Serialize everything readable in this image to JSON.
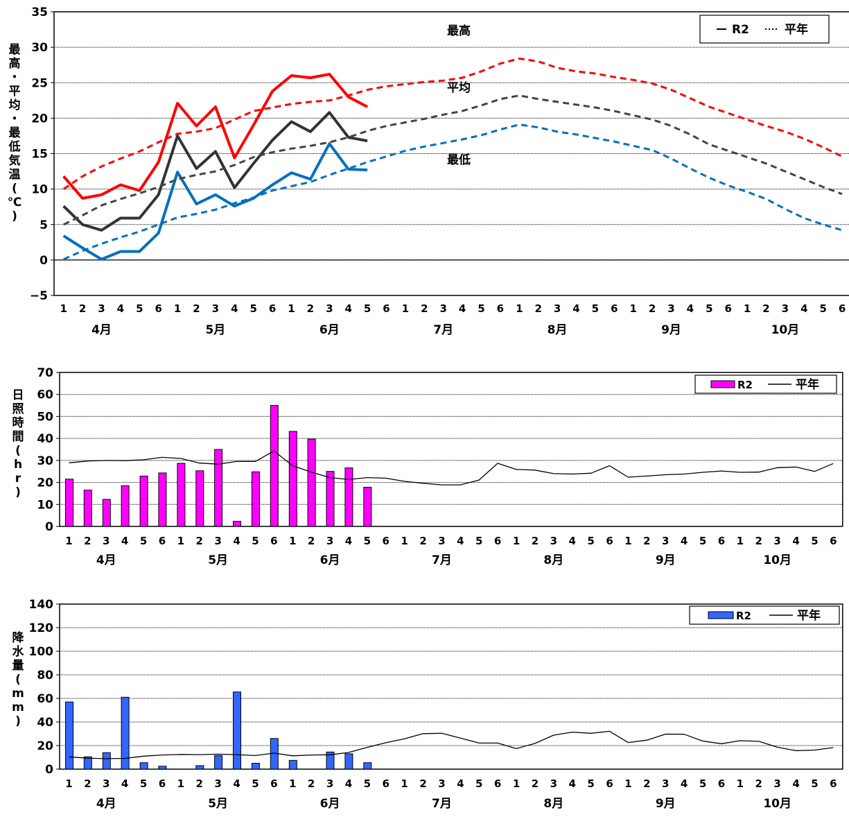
{
  "chart_data": [
    {
      "type": "line",
      "ylabel": "最高・平均・最低気温(℃)",
      "ylim": [
        -5,
        35
      ],
      "yticks": [
        35,
        30,
        25,
        20,
        15,
        10,
        5,
        0,
        -5
      ],
      "ytick_labels": [
        "35",
        "30",
        "25",
        "20",
        "15",
        "10",
        "5",
        "0",
        "−5"
      ],
      "xtick_labels": [
        "1",
        "2",
        "3",
        "4",
        "5",
        "6",
        "1",
        "2",
        "3",
        "4",
        "5",
        "6",
        "1",
        "2",
        "3",
        "4",
        "5",
        "6",
        "1",
        "2",
        "3",
        "4",
        "5",
        "6",
        "1",
        "2",
        "3",
        "4",
        "5",
        "6",
        "1",
        "2",
        "3",
        "4",
        "5",
        "6",
        "1",
        "2",
        "3",
        "4",
        "5",
        "6"
      ],
      "months": [
        "4月",
        "5月",
        "6月",
        "7月",
        "8月",
        "9月",
        "10月"
      ],
      "grid": true,
      "legend": {
        "position": "top-right",
        "items": [
          "R2",
          "平年"
        ]
      },
      "annotations": [
        "最高",
        "平均",
        "最低"
      ],
      "series": [
        {
          "name": "最高",
          "kind": "R2",
          "color": "#ff0000",
          "values": [
            11.8,
            8.7,
            9.2,
            10.6,
            9.8,
            13.8,
            22.1,
            18.9,
            21.6,
            14.4,
            19.0,
            23.8,
            26.0,
            25.7,
            26.2,
            23.0,
            21.6
          ]
        },
        {
          "name": "平均",
          "kind": "R2",
          "color": "#333333",
          "values": [
            7.6,
            5.0,
            4.2,
            5.9,
            5.9,
            9.2,
            17.5,
            12.9,
            15.3,
            10.2,
            13.6,
            16.9,
            19.5,
            18.1,
            20.8,
            17.3,
            16.8
          ]
        },
        {
          "name": "最低",
          "kind": "R2",
          "color": "#0070c0",
          "values": [
            3.4,
            1.7,
            0.1,
            1.2,
            1.2,
            3.8,
            12.4,
            7.9,
            9.2,
            7.6,
            8.7,
            10.6,
            12.3,
            11.4,
            16.4,
            12.8,
            12.7
          ]
        },
        {
          "name": "最高",
          "kind": "平年",
          "color": "#ff0000",
          "values": [
            10.0,
            11.8,
            13.2,
            14.3,
            15.3,
            16.6,
            17.8,
            18.1,
            18.6,
            19.8,
            21.0,
            21.5,
            22.0,
            22.3,
            22.5,
            23.2,
            24.0,
            24.5,
            24.8,
            25.1,
            25.3,
            25.7,
            26.6,
            27.7,
            28.4,
            28.0,
            27.1,
            26.6,
            26.3,
            25.8,
            25.4,
            24.9,
            24.0,
            22.8,
            21.6,
            20.7,
            19.8,
            18.9,
            18.1,
            17.1,
            15.9,
            14.6
          ]
        },
        {
          "name": "平均",
          "kind": "平年",
          "color": "#444444",
          "values": [
            5.0,
            6.3,
            7.7,
            8.6,
            9.4,
            10.3,
            11.4,
            12.0,
            12.5,
            13.4,
            14.5,
            15.2,
            15.7,
            16.1,
            16.6,
            17.3,
            18.2,
            18.9,
            19.4,
            19.9,
            20.5,
            21.0,
            21.8,
            22.7,
            23.2,
            22.7,
            22.3,
            21.9,
            21.5,
            21.0,
            20.4,
            19.8,
            18.9,
            17.7,
            16.3,
            15.4,
            14.5,
            13.6,
            12.5,
            11.4,
            10.3,
            9.3
          ]
        },
        {
          "name": "最低",
          "kind": "平年",
          "color": "#0070c0",
          "values": [
            0.1,
            1.3,
            2.3,
            3.2,
            4.0,
            5.0,
            6.0,
            6.5,
            7.1,
            8.0,
            8.8,
            9.8,
            10.4,
            11.0,
            12.0,
            12.9,
            13.8,
            14.6,
            15.4,
            16.0,
            16.5,
            17.0,
            17.6,
            18.4,
            19.1,
            18.7,
            18.1,
            17.7,
            17.2,
            16.7,
            16.1,
            15.5,
            14.3,
            12.9,
            11.6,
            10.5,
            9.6,
            8.6,
            7.2,
            5.9,
            5.0,
            4.2
          ]
        }
      ]
    },
    {
      "type": "bar",
      "ylabel": "日照時間(hr)",
      "ylim": [
        0,
        70
      ],
      "yticks": [
        0,
        10,
        20,
        30,
        40,
        50,
        60,
        70
      ],
      "xtick_labels": [
        "1",
        "2",
        "3",
        "4",
        "5",
        "6",
        "1",
        "2",
        "3",
        "4",
        "5",
        "6",
        "1",
        "2",
        "3",
        "4",
        "5",
        "6",
        "1",
        "2",
        "3",
        "4",
        "5",
        "6",
        "1",
        "2",
        "3",
        "4",
        "5",
        "6",
        "1",
        "2",
        "3",
        "4",
        "5",
        "6",
        "1",
        "2",
        "3",
        "4",
        "5",
        "6"
      ],
      "months": [
        "4月",
        "5月",
        "6月",
        "7月",
        "8月",
        "9月",
        "10月"
      ],
      "grid": true,
      "legend": {
        "position": "top-right",
        "items": [
          "R2",
          "平年"
        ]
      },
      "series": [
        {
          "name": "R2",
          "kind": "bar",
          "color": "#ff00ff",
          "values": [
            21.5,
            16.5,
            12.3,
            18.5,
            22.9,
            24.3,
            28.7,
            25.3,
            35.0,
            2.3,
            24.8,
            55.0,
            43.2,
            39.7,
            25.0,
            26.6,
            17.8
          ]
        },
        {
          "name": "平年",
          "kind": "line",
          "color": "#000000",
          "values": [
            28.9,
            29.7,
            30.0,
            29.9,
            30.3,
            31.4,
            30.9,
            28.8,
            28.3,
            29.5,
            29.5,
            34.3,
            27.6,
            24.7,
            22.2,
            21.3,
            22.2,
            21.9,
            20.5,
            19.6,
            18.9,
            18.9,
            21.1,
            28.7,
            25.9,
            25.6,
            24.0,
            23.8,
            24.2,
            27.6,
            22.4,
            22.9,
            23.5,
            23.8,
            24.6,
            25.2,
            24.6,
            24.7,
            26.7,
            27.0,
            25.0,
            28.6
          ]
        }
      ]
    },
    {
      "type": "bar",
      "ylabel": "降水量(mm)",
      "ylim": [
        0,
        140
      ],
      "yticks": [
        0,
        20,
        40,
        60,
        80,
        100,
        120,
        140
      ],
      "xtick_labels": [
        "1",
        "2",
        "3",
        "4",
        "5",
        "6",
        "1",
        "2",
        "3",
        "4",
        "5",
        "6",
        "1",
        "2",
        "3",
        "4",
        "5",
        "6",
        "1",
        "2",
        "3",
        "4",
        "5",
        "6",
        "1",
        "2",
        "3",
        "4",
        "5",
        "6",
        "1",
        "2",
        "3",
        "4",
        "5",
        "6",
        "1",
        "2",
        "3",
        "4",
        "5",
        "6"
      ],
      "months": [
        "4月",
        "5月",
        "6月",
        "7月",
        "8月",
        "9月",
        "10月"
      ],
      "grid": true,
      "legend": {
        "position": "top-right",
        "items": [
          "R2",
          "平年"
        ]
      },
      "series": [
        {
          "name": "R2",
          "kind": "bar",
          "color": "#3366ff",
          "values": [
            57.0,
            10.5,
            14.0,
            61.0,
            5.5,
            2.5,
            0,
            3.0,
            11.5,
            65.5,
            5.0,
            26.0,
            7.5,
            0,
            14.5,
            13.0,
            5.5
          ]
        },
        {
          "name": "平年",
          "kind": "line",
          "color": "#000000",
          "values": [
            10.4,
            9.3,
            8.9,
            9.1,
            11.0,
            12.0,
            12.5,
            12.3,
            12.7,
            12.3,
            11.5,
            13.6,
            11.3,
            12.0,
            12.2,
            14.1,
            18.5,
            22.4,
            25.7,
            30.1,
            30.4,
            26.3,
            22.1,
            22.1,
            17.4,
            21.8,
            28.8,
            31.4,
            30.4,
            32.1,
            22.6,
            24.6,
            29.7,
            29.6,
            23.8,
            21.6,
            24.1,
            23.6,
            18.6,
            15.7,
            16.2,
            18.3
          ]
        }
      ]
    }
  ]
}
